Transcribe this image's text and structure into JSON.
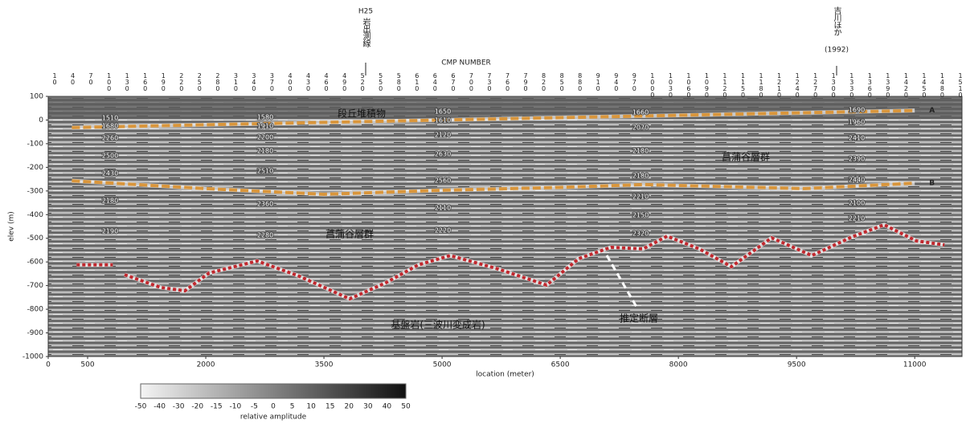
{
  "chart_data": {
    "type": "line",
    "top_axis_label": "CMP NUMBER",
    "cmp_labels": [
      10,
      40,
      70,
      100,
      130,
      160,
      190,
      220,
      250,
      280,
      310,
      340,
      370,
      400,
      430,
      460,
      490,
      520,
      550,
      580,
      610,
      640,
      670,
      700,
      730,
      760,
      790,
      820,
      850,
      880,
      910,
      940,
      970,
      1000,
      1030,
      1060,
      1090,
      1120,
      1150,
      1180,
      1210,
      1240,
      1270,
      1300,
      1330,
      1360,
      1390,
      1420,
      1450,
      1480,
      1510
    ],
    "xlabel": "location (meter)",
    "ylabel": "elev (m)",
    "xlim": [
      0,
      11600
    ],
    "xticks": [
      0,
      500,
      2000,
      3500,
      5000,
      6500,
      8000,
      9500,
      11000
    ],
    "ylim": [
      -1000,
      100
    ],
    "yticks": [
      100,
      0,
      -100,
      -200,
      -300,
      -400,
      -500,
      -600,
      -700,
      -800,
      -900,
      -1000
    ],
    "series": [
      {
        "name": "A",
        "color": "#d9963c",
        "x": [
          300,
          2000,
          3500,
          5000,
          6500,
          8000,
          9500,
          11000
        ],
        "values": [
          -32,
          -20,
          -10,
          0,
          10,
          20,
          30,
          40
        ]
      },
      {
        "name": "B",
        "color": "#d9963c",
        "x": [
          300,
          2000,
          3500,
          5000,
          6500,
          7550,
          9600,
          11000
        ],
        "values": [
          -257,
          -290,
          -314,
          -297,
          -285,
          -273,
          -290,
          -267
        ]
      },
      {
        "name": "基盤岩(三波川変成岩)",
        "color": "#c0282e",
        "x": [
          360,
          820,
          900,
          969,
          1429,
          1735,
          2041,
          2653,
          3163,
          3827,
          4286,
          4694,
          5102,
          5714,
          6327,
          6735,
          7143,
          7551,
          7857,
          8265,
          8673,
          9184,
          9694,
          10204,
          10612,
          11020,
          11378
        ],
        "values": [
          -612,
          -612,
          null,
          -654,
          -708,
          -722,
          -647,
          -596,
          -657,
          -756,
          -688,
          -613,
          -573,
          -630,
          -698,
          -586,
          -538,
          -545,
          -491,
          -545,
          -620,
          -498,
          -573,
          -494,
          -443,
          -511,
          -528
        ]
      }
    ],
    "annotations": [
      "段丘堆積物",
      "菖蒲谷層群",
      "菖蒲谷層群",
      "推定断層",
      "H25",
      "岩出測線",
      "吉川ほか",
      "(1992)"
    ],
    "velocity_columns": [
      [
        1510,
        1680,
        2260,
        2500,
        2430,
        2180,
        2190
      ],
      [
        1580,
        1910,
        2200,
        2180,
        2510,
        2360,
        2280
      ],
      [
        1650,
        1610,
        2120,
        2630,
        2560,
        2110,
        2220
      ],
      [
        1660,
        2070,
        2180,
        2180,
        2210,
        2150,
        2320
      ],
      [
        1690,
        1960,
        2410,
        2390,
        2440,
        2100,
        2210
      ]
    ],
    "colorbar": {
      "label": "relative amplitude",
      "ticks": [
        -50,
        -40,
        -30,
        -20,
        -15,
        -10,
        -5,
        0,
        5,
        10,
        15,
        20,
        30,
        40,
        50
      ]
    }
  }
}
